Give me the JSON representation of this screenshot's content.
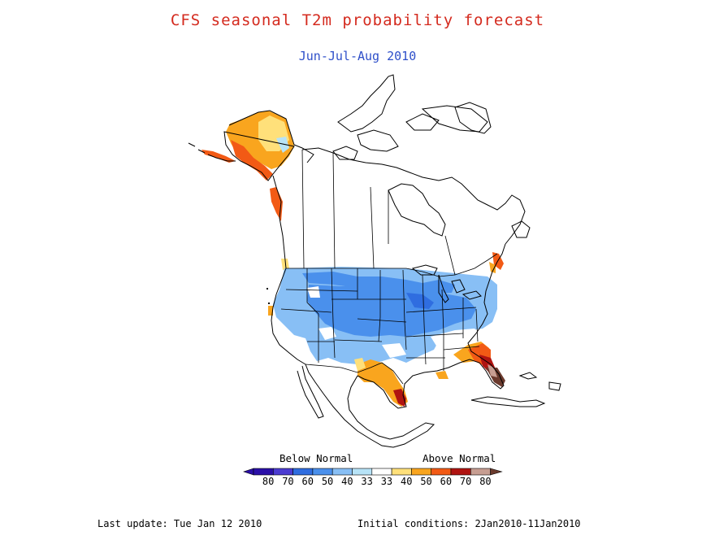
{
  "title": "CFS seasonal T2m probability forecast",
  "subtitle": "Jun-Jul-Aug 2010",
  "legend": {
    "below_label": "Below Normal",
    "above_label": "Above Normal",
    "categories": [
      {
        "label": "80",
        "color": "#2a0fa8"
      },
      {
        "label": "70",
        "color": "#4b3bd1"
      },
      {
        "label": "60",
        "color": "#2f6de0"
      },
      {
        "label": "50",
        "color": "#4a90ec"
      },
      {
        "label": "40",
        "color": "#88bff5"
      },
      {
        "label": "33",
        "color": "#b7e3f7"
      },
      {
        "label": "33",
        "color": "#ffffff"
      },
      {
        "label": "40",
        "color": "#ffe07a"
      },
      {
        "label": "50",
        "color": "#f9a51e"
      },
      {
        "label": "60",
        "color": "#f25a15"
      },
      {
        "label": "70",
        "color": "#b01411"
      },
      {
        "label": "80",
        "color": "#c79e92"
      }
    ],
    "end_color": "#6b3a2d"
  },
  "footer": {
    "last_update": "Last update: Tue Jan 12 2010",
    "initial_conditions": "Initial conditions: 2Jan2010-11Jan2010"
  },
  "map_regions": [
    {
      "name": "alaska-above-normal",
      "category": "50"
    },
    {
      "name": "alaska-coast-above-normal",
      "category": "60"
    },
    {
      "name": "us-interior-below-normal",
      "category": "40"
    },
    {
      "name": "central-us-below-normal",
      "category": "50"
    },
    {
      "name": "texas-above-normal",
      "category": "50"
    },
    {
      "name": "south-texas-above-normal",
      "category": "70"
    },
    {
      "name": "florida-above-normal",
      "category": "70"
    },
    {
      "name": "south-florida-above-normal",
      "category": "80"
    },
    {
      "name": "new-england-above-normal",
      "category": "60"
    }
  ],
  "colors": {
    "title": "#d42a1e",
    "subtitle": "#2e4fc9",
    "outline": "#000000"
  }
}
